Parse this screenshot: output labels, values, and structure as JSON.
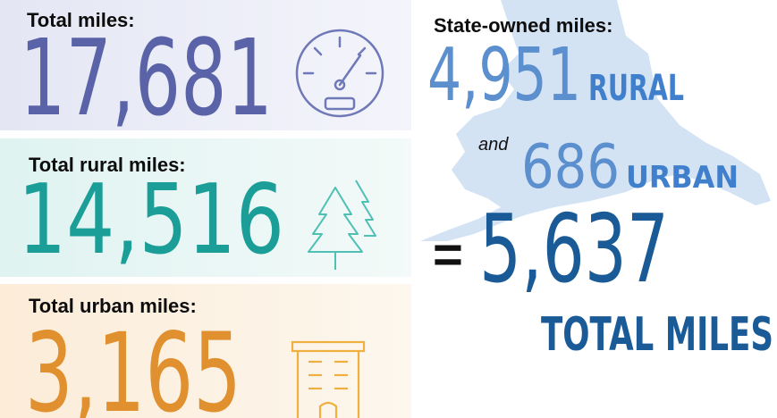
{
  "panels": [
    {
      "label": "Total miles:",
      "value": "17,681"
    },
    {
      "label": "Total rural miles:",
      "value": "14,516"
    },
    {
      "label": "Total urban miles:",
      "value": "3,165"
    }
  ],
  "state_owned": {
    "label": "State-owned miles:",
    "rural": {
      "value": "4,951",
      "label": "RURAL"
    },
    "connector": "and",
    "urban": {
      "value": "686",
      "label": "URBAN"
    },
    "equals": "=",
    "total": {
      "value": "5,637",
      "label": "TOTAL MILES"
    }
  }
}
